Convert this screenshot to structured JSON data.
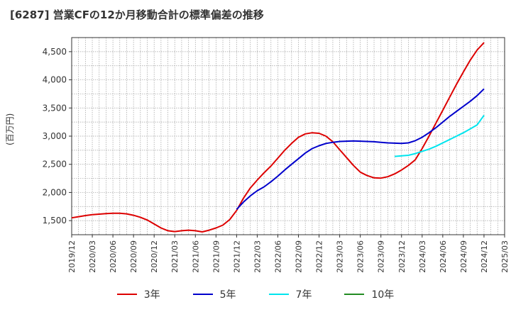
{
  "title": "[6287]  営業CFの12か月移動合計の標準偏差の推移",
  "ylabel": "(百万円)",
  "chart_data": {
    "type": "line",
    "title": "[6287]  営業CFの12か月移動合計の標準偏差の推移",
    "ylabel": "(百万円)",
    "xlabel": "",
    "ylim": [
      1250,
      4750
    ],
    "yticks": [
      1500,
      2000,
      2500,
      3000,
      3500,
      4000,
      4500
    ],
    "ytick_labels": [
      "1,500",
      "2,000",
      "2,500",
      "3,000",
      "3,500",
      "4,000",
      "4,500"
    ],
    "xticks": [
      "2019/12",
      "2020/03",
      "2020/06",
      "2020/09",
      "2020/12",
      "2021/03",
      "2021/06",
      "2021/09",
      "2021/12",
      "2022/03",
      "2022/06",
      "2022/09",
      "2022/12",
      "2023/03",
      "2023/06",
      "2023/09",
      "2023/12",
      "2024/03",
      "2024/06",
      "2024/09",
      "2024/12",
      "2025/03"
    ],
    "grid": true,
    "legend_position": "bottom",
    "series": [
      {
        "name": "3年",
        "color": "#dd0000",
        "points": [
          [
            "2019/12",
            1550
          ],
          [
            "2020/01",
            1570
          ],
          [
            "2020/02",
            1590
          ],
          [
            "2020/03",
            1605
          ],
          [
            "2020/04",
            1615
          ],
          [
            "2020/05",
            1625
          ],
          [
            "2020/06",
            1630
          ],
          [
            "2020/07",
            1630
          ],
          [
            "2020/08",
            1620
          ],
          [
            "2020/09",
            1595
          ],
          [
            "2020/10",
            1560
          ],
          [
            "2020/11",
            1510
          ],
          [
            "2020/12",
            1440
          ],
          [
            "2021/01",
            1370
          ],
          [
            "2021/02",
            1320
          ],
          [
            "2021/03",
            1305
          ],
          [
            "2021/04",
            1320
          ],
          [
            "2021/05",
            1330
          ],
          [
            "2021/06",
            1320
          ],
          [
            "2021/07",
            1300
          ],
          [
            "2021/08",
            1330
          ],
          [
            "2021/09",
            1370
          ],
          [
            "2021/10",
            1420
          ],
          [
            "2021/11",
            1520
          ],
          [
            "2021/12",
            1680
          ],
          [
            "2022/01",
            1900
          ],
          [
            "2022/02",
            2080
          ],
          [
            "2022/03",
            2220
          ],
          [
            "2022/04",
            2350
          ],
          [
            "2022/05",
            2470
          ],
          [
            "2022/06",
            2610
          ],
          [
            "2022/07",
            2750
          ],
          [
            "2022/08",
            2870
          ],
          [
            "2022/09",
            2980
          ],
          [
            "2022/10",
            3040
          ],
          [
            "2022/11",
            3060
          ],
          [
            "2022/12",
            3050
          ],
          [
            "2023/01",
            3000
          ],
          [
            "2023/02",
            2900
          ],
          [
            "2023/03",
            2760
          ],
          [
            "2023/04",
            2620
          ],
          [
            "2023/05",
            2480
          ],
          [
            "2023/06",
            2360
          ],
          [
            "2023/07",
            2300
          ],
          [
            "2023/08",
            2260
          ],
          [
            "2023/09",
            2255
          ],
          [
            "2023/10",
            2280
          ],
          [
            "2023/11",
            2330
          ],
          [
            "2023/12",
            2400
          ],
          [
            "2024/01",
            2480
          ],
          [
            "2024/02",
            2580
          ],
          [
            "2024/03",
            2780
          ],
          [
            "2024/04",
            3000
          ],
          [
            "2024/05",
            3230
          ],
          [
            "2024/06",
            3460
          ],
          [
            "2024/07",
            3690
          ],
          [
            "2024/08",
            3920
          ],
          [
            "2024/09",
            4140
          ],
          [
            "2024/10",
            4350
          ],
          [
            "2024/11",
            4530
          ],
          [
            "2024/12",
            4660
          ]
        ]
      },
      {
        "name": "5年",
        "color": "#0000cc",
        "points": [
          [
            "2021/12",
            1700
          ],
          [
            "2022/01",
            1830
          ],
          [
            "2022/02",
            1940
          ],
          [
            "2022/03",
            2030
          ],
          [
            "2022/04",
            2100
          ],
          [
            "2022/05",
            2190
          ],
          [
            "2022/06",
            2290
          ],
          [
            "2022/07",
            2400
          ],
          [
            "2022/08",
            2500
          ],
          [
            "2022/09",
            2600
          ],
          [
            "2022/10",
            2700
          ],
          [
            "2022/11",
            2780
          ],
          [
            "2022/12",
            2830
          ],
          [
            "2023/01",
            2870
          ],
          [
            "2023/02",
            2890
          ],
          [
            "2023/03",
            2905
          ],
          [
            "2023/04",
            2910
          ],
          [
            "2023/05",
            2915
          ],
          [
            "2023/06",
            2910
          ],
          [
            "2023/07",
            2905
          ],
          [
            "2023/08",
            2900
          ],
          [
            "2023/09",
            2890
          ],
          [
            "2023/10",
            2880
          ],
          [
            "2023/11",
            2875
          ],
          [
            "2023/12",
            2870
          ],
          [
            "2024/01",
            2880
          ],
          [
            "2024/02",
            2920
          ],
          [
            "2024/03",
            2980
          ],
          [
            "2024/04",
            3060
          ],
          [
            "2024/05",
            3150
          ],
          [
            "2024/06",
            3250
          ],
          [
            "2024/07",
            3350
          ],
          [
            "2024/08",
            3440
          ],
          [
            "2024/09",
            3530
          ],
          [
            "2024/10",
            3620
          ],
          [
            "2024/11",
            3720
          ],
          [
            "2024/12",
            3840
          ]
        ]
      },
      {
        "name": "7年",
        "color": "#00e5ee",
        "points": [
          [
            "2023/11",
            2640
          ],
          [
            "2023/12",
            2650
          ],
          [
            "2024/01",
            2660
          ],
          [
            "2024/02",
            2690
          ],
          [
            "2024/03",
            2730
          ],
          [
            "2024/04",
            2770
          ],
          [
            "2024/05",
            2820
          ],
          [
            "2024/06",
            2880
          ],
          [
            "2024/07",
            2940
          ],
          [
            "2024/08",
            3000
          ],
          [
            "2024/09",
            3060
          ],
          [
            "2024/10",
            3130
          ],
          [
            "2024/11",
            3200
          ],
          [
            "2024/12",
            3370
          ]
        ]
      },
      {
        "name": "10年",
        "color": "#228b22",
        "points": []
      }
    ]
  }
}
